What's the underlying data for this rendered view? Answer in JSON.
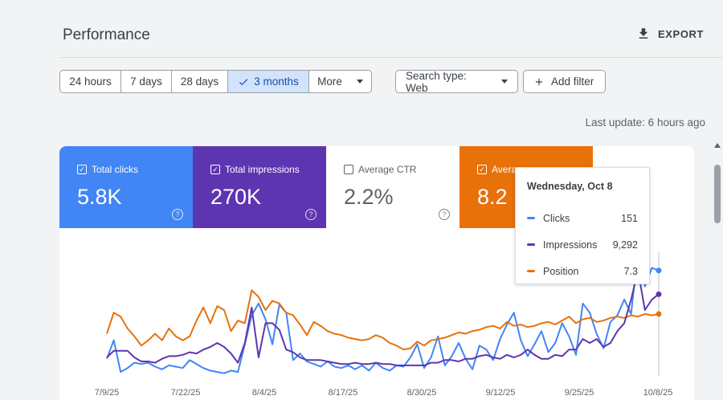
{
  "header": {
    "title": "Performance",
    "export_label": "EXPORT"
  },
  "filters": {
    "date_ranges": [
      {
        "label": "24 hours",
        "active": false
      },
      {
        "label": "7 days",
        "active": false
      },
      {
        "label": "28 days",
        "active": false
      },
      {
        "label": "3 months",
        "active": true
      },
      {
        "label": "More",
        "active": false
      }
    ],
    "search_type": "Search type: Web",
    "add_filter": "Add filter"
  },
  "last_update": "Last update: 6 hours ago",
  "metrics": {
    "clicks": {
      "label": "Total clicks",
      "value": "5.8K",
      "checked": true,
      "color": "#4285f4"
    },
    "impressions": {
      "label": "Total impressions",
      "value": "270K",
      "checked": true,
      "color": "#5e35b1"
    },
    "ctr": {
      "label": "Average CTR",
      "value": "2.2%",
      "checked": false,
      "color": "#ffffff"
    },
    "position": {
      "label": "Avera",
      "value": "8.2",
      "checked": true,
      "color": "#e8710a"
    }
  },
  "tooltip": {
    "date": "Wednesday, Oct 8",
    "rows": [
      {
        "name": "Clicks",
        "value": "151",
        "color": "#4285f4"
      },
      {
        "name": "Impressions",
        "value": "9,292",
        "color": "#5e35b1"
      },
      {
        "name": "Position",
        "value": "7.3",
        "color": "#e8710a"
      }
    ]
  },
  "chart_data": {
    "type": "line",
    "x_labels": [
      "7/9/25",
      "7/22/25",
      "8/4/25",
      "8/17/25",
      "8/30/25",
      "9/12/25",
      "9/25/25",
      "10/8/25"
    ],
    "series": [
      {
        "name": "Clicks",
        "color": "#4285f4",
        "values": [
          0.13,
          0.27,
          0.03,
          0.06,
          0.1,
          0.09,
          0.1,
          0.07,
          0.05,
          0.08,
          0.07,
          0.06,
          0.12,
          0.09,
          0.06,
          0.04,
          0.03,
          0.02,
          0.04,
          0.03,
          0.24,
          0.46,
          0.55,
          0.43,
          0.24,
          0.54,
          0.48,
          0.12,
          0.17,
          0.11,
          0.09,
          0.07,
          0.11,
          0.07,
          0.06,
          0.08,
          0.05,
          0.08,
          0.04,
          0.1,
          0.06,
          0.04,
          0.08,
          0.07,
          0.14,
          0.24,
          0.06,
          0.14,
          0.3,
          0.08,
          0.15,
          0.25,
          0.13,
          0.05,
          0.23,
          0.2,
          0.12,
          0.28,
          0.39,
          0.48,
          0.27,
          0.15,
          0.24,
          0.34,
          0.18,
          0.25,
          0.4,
          0.3,
          0.16,
          0.55,
          0.48,
          0.32,
          0.21,
          0.41,
          0.46,
          0.58,
          0.47,
          0.95,
          0.68,
          0.82,
          0.8
        ]
      },
      {
        "name": "Impressions",
        "color": "#5e35b1",
        "values": [
          0.14,
          0.19,
          0.19,
          0.19,
          0.14,
          0.11,
          0.11,
          0.1,
          0.13,
          0.15,
          0.15,
          0.16,
          0.18,
          0.17,
          0.2,
          0.22,
          0.25,
          0.22,
          0.17,
          0.1,
          0.25,
          0.52,
          0.14,
          0.4,
          0.4,
          0.35,
          0.2,
          0.18,
          0.14,
          0.12,
          0.12,
          0.12,
          0.11,
          0.1,
          0.09,
          0.09,
          0.1,
          0.09,
          0.09,
          0.1,
          0.09,
          0.09,
          0.08,
          0.08,
          0.08,
          0.08,
          0.08,
          0.1,
          0.1,
          0.12,
          0.12,
          0.11,
          0.13,
          0.13,
          0.15,
          0.16,
          0.14,
          0.13,
          0.16,
          0.14,
          0.16,
          0.2,
          0.16,
          0.13,
          0.13,
          0.16,
          0.15,
          0.2,
          0.2,
          0.28,
          0.25,
          0.28,
          0.22,
          0.25,
          0.34,
          0.4,
          0.58,
          0.8,
          0.5,
          0.58,
          0.62
        ]
      },
      {
        "name": "Position",
        "color": "#e8710a",
        "values": [
          0.32,
          0.48,
          0.45,
          0.36,
          0.3,
          0.23,
          0.27,
          0.32,
          0.27,
          0.36,
          0.3,
          0.27,
          0.3,
          0.42,
          0.52,
          0.4,
          0.53,
          0.5,
          0.34,
          0.42,
          0.4,
          0.65,
          0.6,
          0.5,
          0.57,
          0.55,
          0.48,
          0.46,
          0.39,
          0.31,
          0.41,
          0.38,
          0.34,
          0.32,
          0.31,
          0.29,
          0.28,
          0.27,
          0.28,
          0.31,
          0.29,
          0.25,
          0.23,
          0.2,
          0.21,
          0.26,
          0.23,
          0.27,
          0.28,
          0.29,
          0.31,
          0.33,
          0.32,
          0.34,
          0.35,
          0.37,
          0.38,
          0.36,
          0.41,
          0.38,
          0.39,
          0.37,
          0.38,
          0.4,
          0.41,
          0.39,
          0.42,
          0.45,
          0.4,
          0.43,
          0.44,
          0.41,
          0.42,
          0.44,
          0.45,
          0.44,
          0.46,
          0.45,
          0.47,
          0.46,
          0.47
        ]
      }
    ]
  }
}
